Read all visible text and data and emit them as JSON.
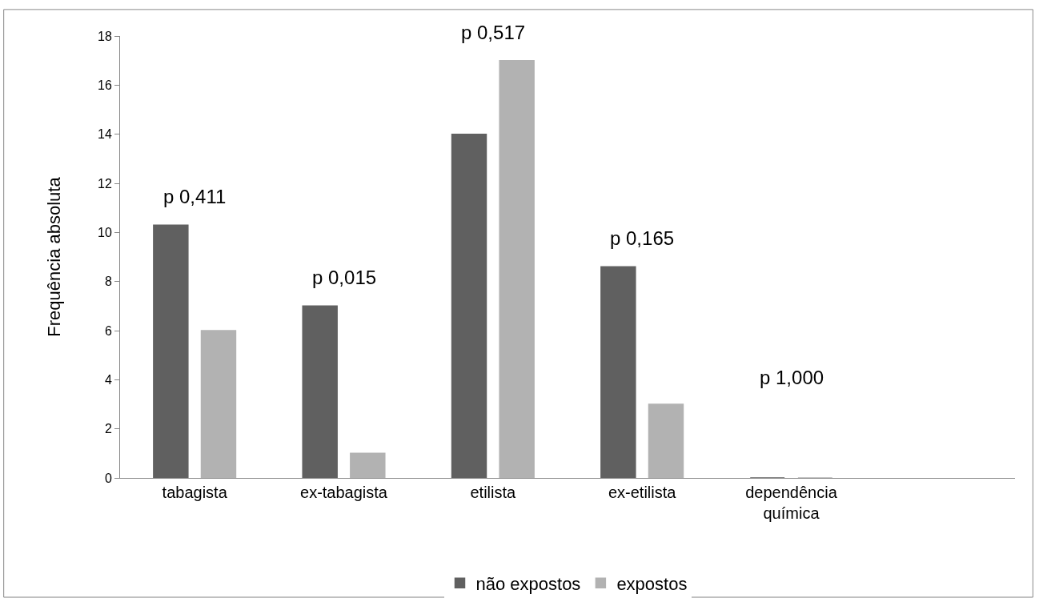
{
  "chart_data": {
    "type": "bar",
    "ylabel": "Frequência absoluta",
    "categories": [
      "tabagista",
      "ex-tabagista",
      "etilista",
      "ex-etilista",
      "dependência química",
      null
    ],
    "series": [
      {
        "name": "não expostos",
        "color": "#606060",
        "values": [
          10.3,
          7,
          14,
          8.6,
          0,
          null
        ]
      },
      {
        "name": "expostos",
        "color": "#b2b2b2",
        "values": [
          6,
          1,
          17,
          3,
          0,
          null
        ]
      }
    ],
    "ylim": [
      0,
      18
    ],
    "yticks": [
      0,
      2,
      4,
      6,
      8,
      10,
      12,
      14,
      16,
      18
    ],
    "grid": false,
    "legend": "bottom",
    "annotations": [
      "p 0,411",
      "p 0,015",
      "p 0,517",
      "p 0,165",
      "p 1,000"
    ]
  }
}
